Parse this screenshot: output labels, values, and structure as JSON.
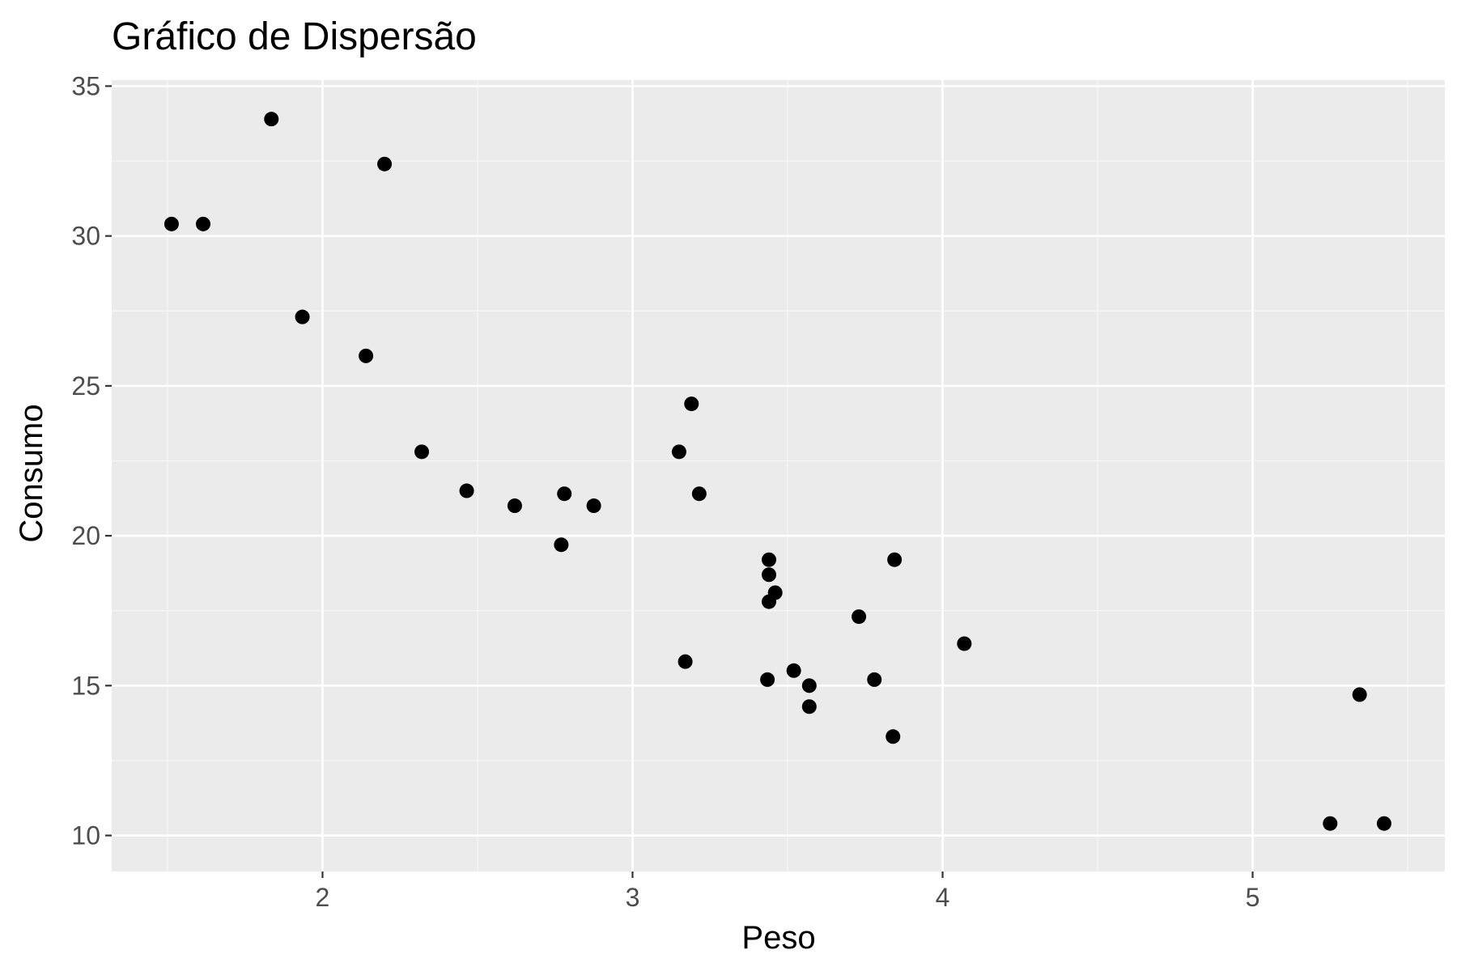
{
  "chart_data": {
    "type": "scatter",
    "title": "Gráfico de Dispersão",
    "xlabel": "Peso",
    "ylabel": "Consumo",
    "xlim": [
      1.32,
      5.62
    ],
    "ylim": [
      8.8,
      35.2
    ],
    "x_ticks": [
      2,
      3,
      4,
      5
    ],
    "x_tick_labels": [
      "2",
      "3",
      "4",
      "5"
    ],
    "x_minor_ticks": [
      1.5,
      2.5,
      3.5,
      4.5,
      5.5
    ],
    "y_ticks": [
      10,
      15,
      20,
      25,
      30,
      35
    ],
    "y_tick_labels": [
      "10",
      "15",
      "20",
      "25",
      "30",
      "35"
    ],
    "y_minor_ticks": [
      12.5,
      17.5,
      22.5,
      27.5,
      32.5
    ],
    "grid": true,
    "colors": {
      "panel_background": "#ebebeb",
      "grid_major": "#ffffff",
      "grid_minor": "#f7f7f7",
      "point": "#000000",
      "tick_mark": "#333333"
    },
    "series": [
      {
        "name": "Consumo",
        "points": [
          {
            "x": 2.62,
            "y": 21.0
          },
          {
            "x": 2.875,
            "y": 21.0
          },
          {
            "x": 2.32,
            "y": 22.8
          },
          {
            "x": 3.215,
            "y": 21.4
          },
          {
            "x": 3.44,
            "y": 18.7
          },
          {
            "x": 3.46,
            "y": 18.1
          },
          {
            "x": 3.57,
            "y": 14.3
          },
          {
            "x": 3.19,
            "y": 24.4
          },
          {
            "x": 3.15,
            "y": 22.8
          },
          {
            "x": 3.44,
            "y": 19.2
          },
          {
            "x": 3.44,
            "y": 17.8
          },
          {
            "x": 4.07,
            "y": 16.4
          },
          {
            "x": 3.73,
            "y": 17.3
          },
          {
            "x": 3.78,
            "y": 15.2
          },
          {
            "x": 5.25,
            "y": 10.4
          },
          {
            "x": 5.424,
            "y": 10.4
          },
          {
            "x": 5.345,
            "y": 14.7
          },
          {
            "x": 2.2,
            "y": 32.4
          },
          {
            "x": 1.615,
            "y": 30.4
          },
          {
            "x": 1.835,
            "y": 33.9
          },
          {
            "x": 2.465,
            "y": 21.5
          },
          {
            "x": 3.52,
            "y": 15.5
          },
          {
            "x": 3.435,
            "y": 15.2
          },
          {
            "x": 3.84,
            "y": 13.3
          },
          {
            "x": 3.845,
            "y": 19.2
          },
          {
            "x": 1.935,
            "y": 27.3
          },
          {
            "x": 2.14,
            "y": 26.0
          },
          {
            "x": 1.513,
            "y": 30.4
          },
          {
            "x": 3.17,
            "y": 15.8
          },
          {
            "x": 2.77,
            "y": 19.7
          },
          {
            "x": 3.57,
            "y": 15.0
          },
          {
            "x": 2.78,
            "y": 21.4
          }
        ]
      }
    ]
  }
}
